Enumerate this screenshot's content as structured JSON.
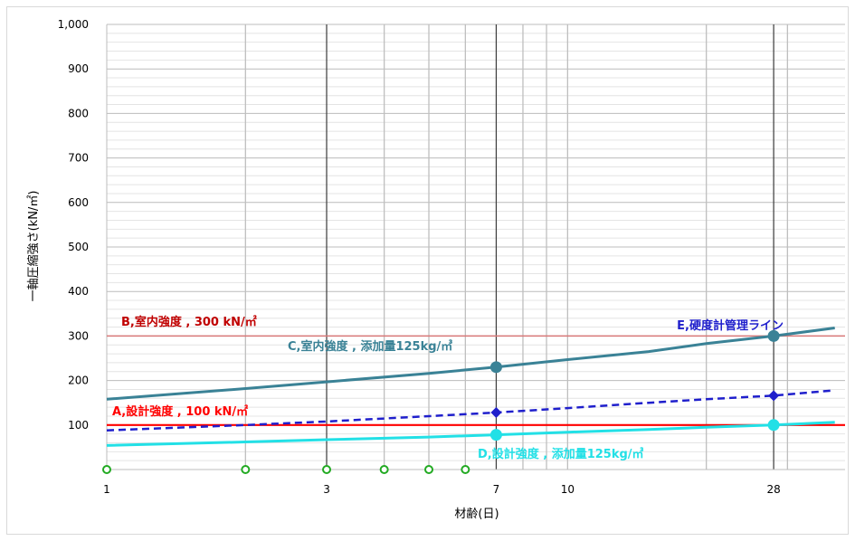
{
  "chart_data": {
    "type": "line",
    "xlabel": "材齢(日)",
    "ylabel": "一軸圧縮強さ(kN/㎡)",
    "x_scale": "log",
    "xlim": [
      1,
      40
    ],
    "ylim": [
      0,
      1000
    ],
    "x_tick_labels": [
      {
        "value": 1,
        "label": "1"
      },
      {
        "value": 3,
        "label": "3"
      },
      {
        "value": 7,
        "label": "7"
      },
      {
        "value": 10,
        "label": "10"
      },
      {
        "value": 28,
        "label": "28"
      }
    ],
    "y_ticks": [
      {
        "value": 100,
        "label": "100"
      },
      {
        "value": 200,
        "label": "200"
      },
      {
        "value": 300,
        "label": "300"
      },
      {
        "value": 400,
        "label": "400"
      },
      {
        "value": 500,
        "label": "500"
      },
      {
        "value": 600,
        "label": "600"
      },
      {
        "value": 700,
        "label": "700"
      },
      {
        "value": 800,
        "label": "800"
      },
      {
        "value": 900,
        "label": "900"
      },
      {
        "value": 1000,
        "label": "1,000"
      }
    ],
    "major_x_lines": [
      3,
      7,
      28
    ],
    "minor_x_lines": [
      2,
      4,
      5,
      6,
      8,
      9,
      10,
      20,
      30
    ],
    "baseline_markers_x": [
      1,
      2,
      3,
      4,
      5,
      6
    ],
    "series": [
      {
        "name": "A,設計強度 , 100 kN/㎡",
        "color": "#ff0000",
        "style": "solid",
        "x": [
          1,
          40
        ],
        "y": [
          100,
          100
        ]
      },
      {
        "name": "B,室内強度 , 300 kN/㎡",
        "color": "#d87878",
        "style": "solid",
        "x": [
          1,
          40
        ],
        "y": [
          300,
          300
        ]
      },
      {
        "name": "C,室内強度 , 添加量125kg/㎥",
        "color": "#3a8296",
        "style": "solid",
        "x": [
          1,
          2,
          3,
          5,
          7,
          10,
          15,
          20,
          28,
          38
        ],
        "y": [
          158,
          182,
          197,
          216,
          230,
          247,
          265,
          283,
          300,
          318
        ],
        "points": [
          {
            "x": 7,
            "y": 230
          },
          {
            "x": 28,
            "y": 300
          }
        ]
      },
      {
        "name": "E,硬度計管理ライン",
        "color": "#1f1fcc",
        "style": "dashed",
        "x": [
          1,
          2,
          3,
          5,
          7,
          10,
          15,
          20,
          28,
          38
        ],
        "y": [
          88,
          100,
          108,
          120,
          128,
          138,
          150,
          158,
          166,
          178
        ],
        "points": [
          {
            "x": 7,
            "y": 128
          },
          {
            "x": 28,
            "y": 166
          }
        ]
      },
      {
        "name": "D,設計強度 , 添加量125kg/㎥",
        "color": "#22e0e6",
        "style": "solid",
        "x": [
          1,
          2,
          3,
          5,
          7,
          10,
          15,
          20,
          28,
          38
        ],
        "y": [
          54,
          62,
          67,
          73,
          78,
          84,
          90,
          95,
          100,
          106
        ],
        "points": [
          {
            "x": 7,
            "y": 78
          },
          {
            "x": 28,
            "y": 100
          }
        ]
      }
    ],
    "annotations": [
      {
        "text": "B,室内強度 , 300 kN/㎡",
        "color": "#c00000"
      },
      {
        "text": "C,室内強度 , 添加量125kg/㎥",
        "color": "#3a8296"
      },
      {
        "text": "E,硬度計管理ライン",
        "color": "#1f1fcc"
      },
      {
        "text": "A,設計強度 , 100 kN/㎡",
        "color": "#ff0000"
      },
      {
        "text": "D,設計強度 , 添加量125kg/㎥",
        "color": "#22e0e6"
      }
    ]
  }
}
